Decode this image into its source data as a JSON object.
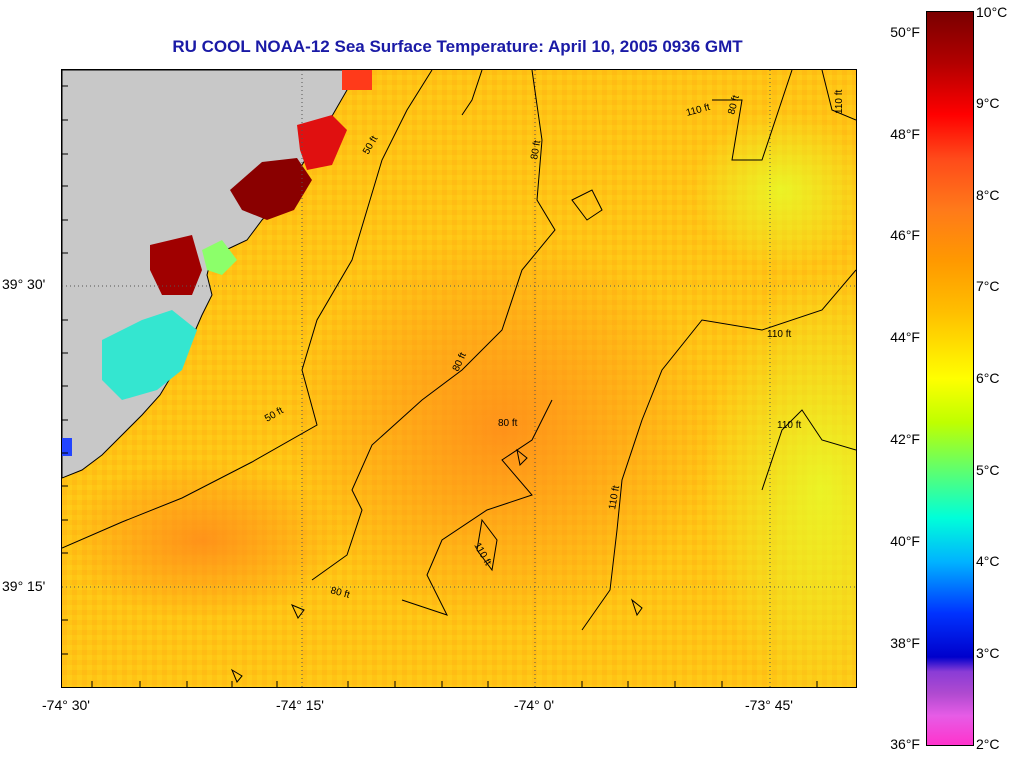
{
  "title": "RU COOL  NOAA-12  Sea Surface Temperature:  April 10, 2005 0936 GMT",
  "axes": {
    "y_ticks": [
      "39° 30'",
      "39° 15'"
    ],
    "x_ticks": [
      "-74° 30'",
      "-74° 15'",
      "-74° 0'",
      "-73° 45'"
    ]
  },
  "colorbar": {
    "fahrenheit_ticks": [
      "50°F",
      "48°F",
      "46°F",
      "44°F",
      "42°F",
      "40°F",
      "38°F",
      "36°F"
    ],
    "celsius_ticks": [
      "10°C",
      "9°C",
      "8°C",
      "7°C",
      "6°C",
      "5°C",
      "4°C",
      "3°C",
      "2°C"
    ]
  },
  "contours": {
    "labels": [
      "50 ft",
      "50 ft",
      "80 ft",
      "80 ft",
      "80 ft",
      "80 ft",
      "110 ft",
      "110 ft",
      "110 ft",
      "110 ft",
      "110 ft",
      "110 ft",
      "80 ft"
    ]
  },
  "colors": {
    "title": "#1a1aa6",
    "land": "#c8c8c8",
    "ocean_base": "#ffc414"
  }
}
